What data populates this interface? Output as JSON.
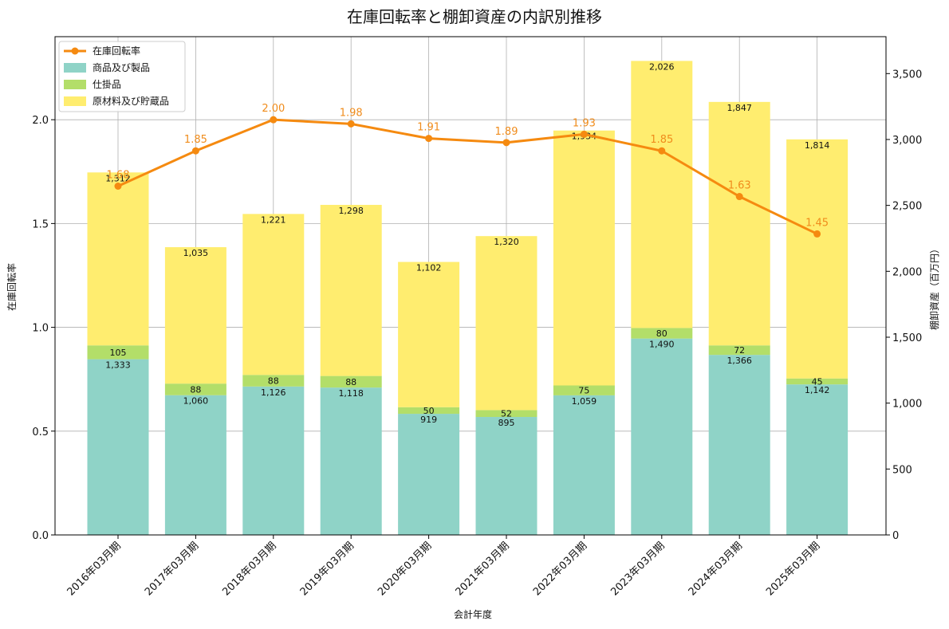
{
  "chart_data": {
    "type": "bar",
    "title": "在庫回転率と棚卸資産の内訳別推移",
    "xlabel": "会計年度",
    "ylabel_left": "在庫回転率",
    "ylabel_right": "棚卸資産（百万円）",
    "categories": [
      "2016年03月期",
      "2017年03月期",
      "2018年03月期",
      "2019年03月期",
      "2020年03月期",
      "2021年03月期",
      "2022年03月期",
      "2023年03月期",
      "2024年03月期",
      "2025年03月期"
    ],
    "stacked": true,
    "series": [
      {
        "name": "商品及び製品",
        "axis": "right",
        "color": "#8fd3c7",
        "values": [
          1333,
          1060,
          1126,
          1118,
          919,
          895,
          1059,
          1490,
          1366,
          1142
        ]
      },
      {
        "name": "仕掛品",
        "axis": "right",
        "color": "#b3de69",
        "values": [
          105,
          88,
          88,
          88,
          50,
          52,
          75,
          80,
          72,
          45
        ]
      },
      {
        "name": "原材料及び貯蔵品",
        "axis": "right",
        "color": "#ffed6f",
        "values": [
          1312,
          1035,
          1221,
          1298,
          1102,
          1320,
          1934,
          2026,
          1847,
          1814
        ]
      }
    ],
    "line_series": {
      "name": "在庫回転率",
      "axis": "left",
      "color": "#f58a10",
      "values": [
        1.68,
        1.85,
        2.0,
        1.98,
        1.91,
        1.89,
        1.93,
        1.85,
        1.63,
        1.45
      ],
      "labels": [
        "1.68",
        "1.85",
        "2.00",
        "1.98",
        "1.91",
        "1.89",
        "1.93",
        "1.85",
        "1.63",
        "1.45"
      ]
    },
    "ylim_left": [
      0,
      2.4
    ],
    "yticks_left": [
      "0.0",
      "0.5",
      "1.0",
      "1.5",
      "2.0"
    ],
    "ylim_right": [
      0,
      3780
    ],
    "yticks_right": [
      "0",
      "500",
      "1,000",
      "1,500",
      "2,000",
      "2,500",
      "3,000",
      "3,500"
    ],
    "grid": true,
    "legend_position": "top-left"
  }
}
